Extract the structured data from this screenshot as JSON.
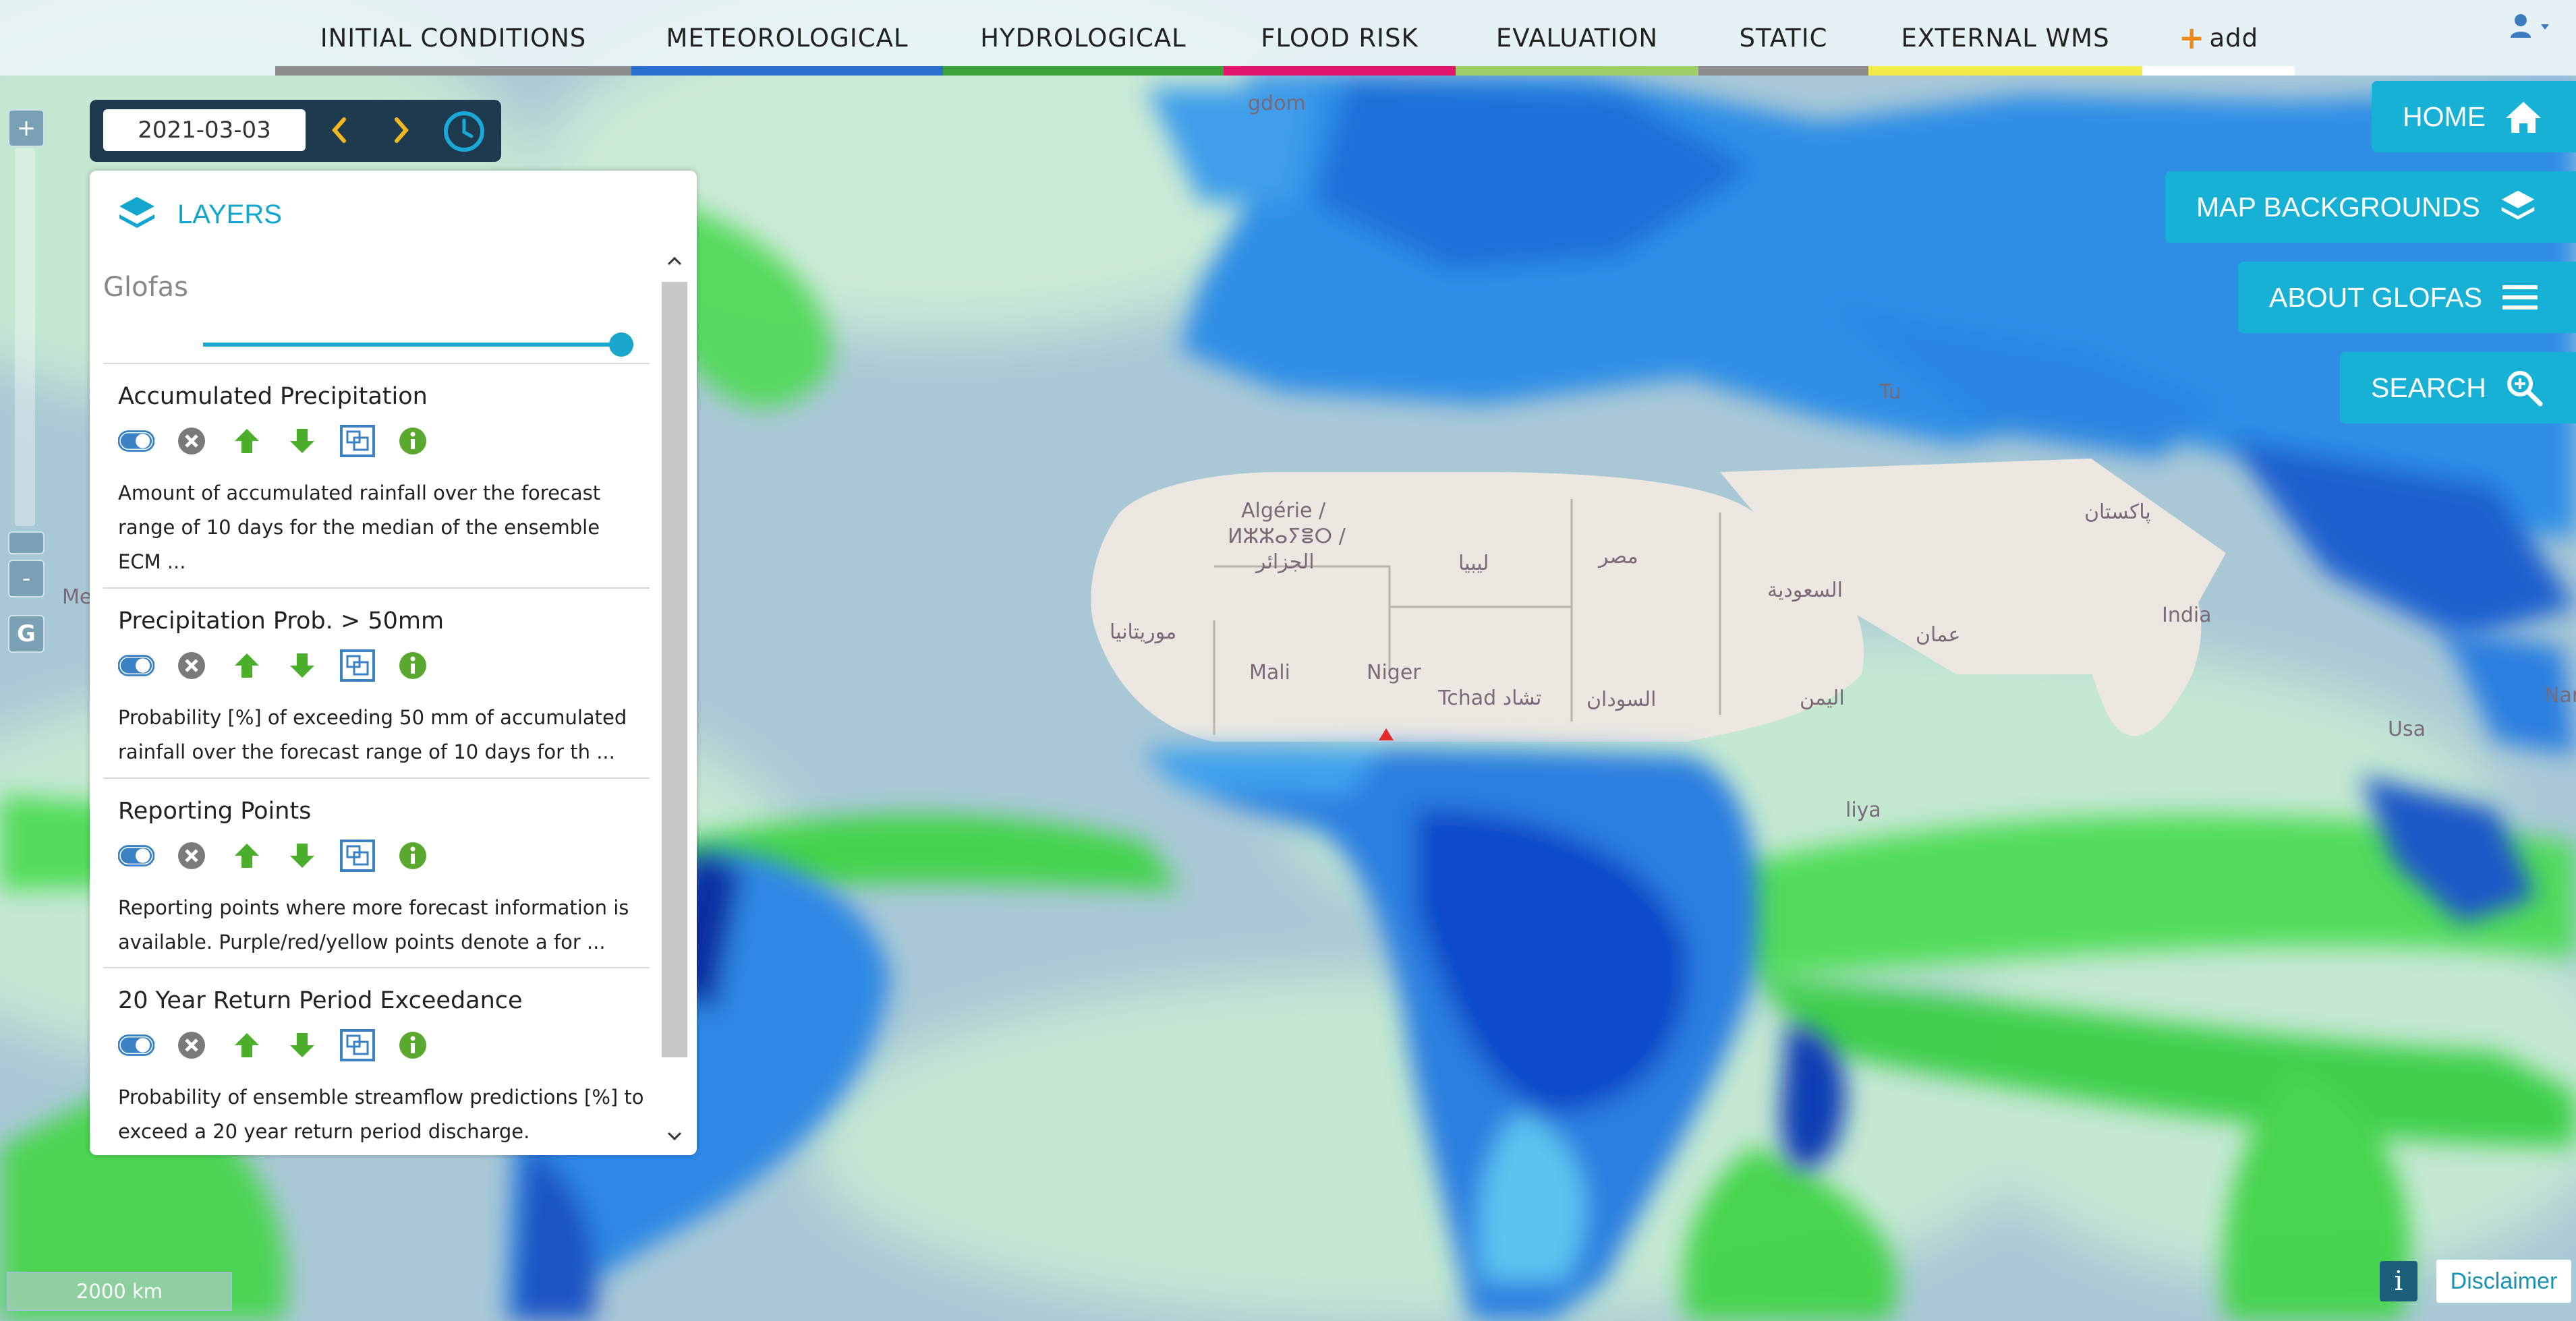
{
  "nav": {
    "tabs": [
      {
        "label": "INITIAL CONDITIONS",
        "color": "#8c8c8c"
      },
      {
        "label": "METEOROLOGICAL",
        "color": "#2a6fd0"
      },
      {
        "label": "HYDROLOGICAL",
        "color": "#3aa33a"
      },
      {
        "label": "FLOOD RISK",
        "color": "#e0156b"
      },
      {
        "label": "EVALUATION",
        "color": "#9ccf69"
      },
      {
        "label": "STATIC",
        "color": "#8c8c8c"
      },
      {
        "label": "EXTERNAL WMS",
        "color": "#f1ec4a"
      }
    ],
    "add_label": "add",
    "user_icon": "user-icon"
  },
  "zoom": {
    "in_label": "+",
    "out_label": "-",
    "globe_label": "G"
  },
  "date": {
    "value": "2021-03-03",
    "prev_icon": "chevron-left-icon",
    "next_icon": "chevron-right-icon",
    "clock_icon": "clock-icon"
  },
  "layers_panel": {
    "title": "LAYERS",
    "group_title": "Glofas",
    "opacity": 1.0,
    "layers": [
      {
        "name": "Accumulated Precipitation",
        "desc": "Amount of accumulated rainfall over the forecast range of 10 days for the median of the ensemble ECM ...",
        "enabled": true
      },
      {
        "name": "Precipitation Prob. > 50mm",
        "desc": "Probability [%] of exceeding 50 mm of accumulated rainfall over the forecast range of 10 days for th ...",
        "enabled": true
      },
      {
        "name": "Reporting Points",
        "desc": "Reporting points where more forecast information is available. Purple/red/yellow points denote a for ...",
        "enabled": true
      },
      {
        "name": "20 Year Return Period Exceedance",
        "desc": "Probability of ensemble streamflow predictions [%] to exceed a 20 year return period discharge.",
        "enabled": true
      }
    ]
  },
  "right_buttons": {
    "home": "HOME",
    "backgrounds": "MAP BACKGROUNDS",
    "about": "ABOUT GLOFAS",
    "search": "SEARCH"
  },
  "map_labels": {
    "kingdom": "gdom",
    "algerie_1": "Algérie /",
    "algerie_2": "ⵍⵣⵣⴰⵢⴻⵔ /",
    "algerie_3": "الجزائر",
    "libya": "ليبيا",
    "egypt": "مصر",
    "mauritania": "موريتانيا",
    "mali": "Mali",
    "niger": "Niger",
    "chad": "Tchad تشاد",
    "sudan": "السودان",
    "saudi": "السعودية",
    "oman": "عمان",
    "yemen": "اليمن",
    "pakistan": "پاکستان",
    "india": "India",
    "tu": "Tu",
    "me": "Me",
    "liya": "liya",
    "usa": "Usa",
    "nam": "Nam"
  },
  "footer": {
    "scale": "2000 km",
    "info_label": "i",
    "disclaimer": "Disclaimer"
  }
}
